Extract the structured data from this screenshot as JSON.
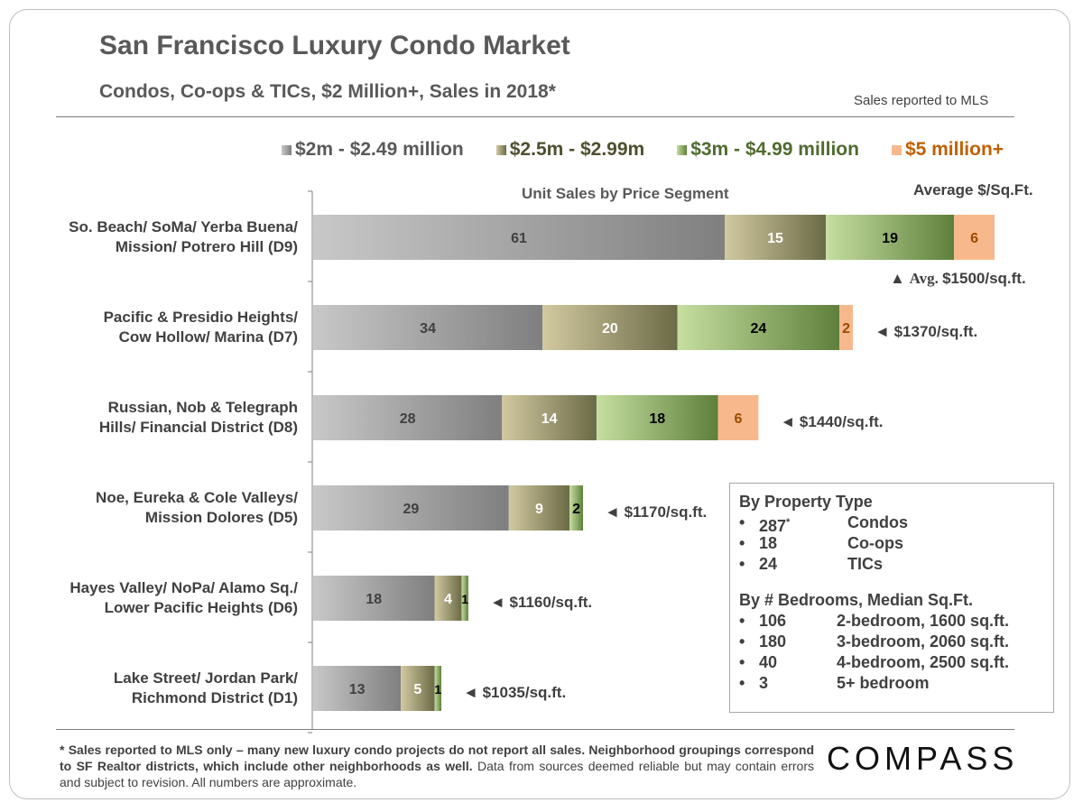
{
  "title": "San Francisco Luxury Condo Market",
  "subtitle": "Condos, Co-ops & TICs, $2 Million+,  Sales in 2018*",
  "source_note": "Sales reported to MLS",
  "chart_data": {
    "type": "bar",
    "orientation": "horizontal",
    "stacked": true,
    "title": "Unit Sales by Price Segment",
    "value_heading": "Average $/Sq.Ft.",
    "categories": [
      [
        "So. Beach/ SoMa/ Yerba Buena/",
        "Mission/ Potrero Hill (D9)"
      ],
      [
        "Pacific & Presidio Heights/",
        "Cow Hollow/ Marina (D7)"
      ],
      [
        "Russian, Nob & Telegraph",
        "Hills/ Financial District (D8)"
      ],
      [
        "Noe, Eureka & Cole Valleys/",
        "Mission Dolores (D5)"
      ],
      [
        "Hayes Valley/ NoPa/ Alamo Sq./",
        "Lower Pacific Heights (D6)"
      ],
      [
        "Lake Street/ Jordan Park/",
        "Richmond District (D1)"
      ]
    ],
    "series": [
      {
        "name": "$2m - $2.49 million",
        "values": [
          61,
          34,
          28,
          29,
          18,
          13
        ],
        "color": "#7f7f7f",
        "light": "#c8c8c8",
        "label_color": "#404040"
      },
      {
        "name": "$2.5m - $2.99m",
        "values": [
          15,
          20,
          14,
          9,
          4,
          5
        ],
        "color": "#6b6b47",
        "light": "#d2c9a0",
        "label_color": "#ffffff"
      },
      {
        "name": "$3m - $4.99 million",
        "values": [
          19,
          24,
          18,
          2,
          1,
          1
        ],
        "color": "#5f7f3c",
        "light": "#c5dfa0",
        "label_color": "#000000"
      },
      {
        "name": "$5 million+",
        "values": [
          6,
          2,
          6,
          0,
          0,
          0
        ],
        "color": "#f7b98c",
        "light": "#fbcba6",
        "label_color": "#9c4a00"
      }
    ],
    "avg_price_per_sqft": [
      {
        "arrow": "▲",
        "prefix": "Avg.",
        "value": "$1500/sq.ft."
      },
      {
        "arrow": "◄",
        "prefix": "",
        "value": "$1370/sq.ft."
      },
      {
        "arrow": "◄",
        "prefix": "",
        "value": "$1440/sq.ft."
      },
      {
        "arrow": "◄",
        "prefix": "",
        "value": "$1170/sq.ft."
      },
      {
        "arrow": "◄",
        "prefix": "",
        "value": "$1160/sq.ft."
      },
      {
        "arrow": "◄",
        "prefix": "",
        "value": "$1035/sq.ft."
      }
    ],
    "xlim": [
      0,
      101
    ]
  },
  "legend_colors": {
    "series0_text": "#595959",
    "series1_text": "#4f4f2f",
    "series2_text": "#4f6b2f",
    "series3_text": "#c06000"
  },
  "info_box": {
    "property_heading": "By Property Type",
    "property_rows": [
      {
        "bullet": "•",
        "count": "287",
        "mark": "*",
        "label": "Condos"
      },
      {
        "bullet": "•",
        "count": "18",
        "mark": "",
        "label": "Co-ops"
      },
      {
        "bullet": "•",
        "count": "24",
        "mark": "",
        "label": "TICs"
      }
    ],
    "bedroom_heading": "By # Bedrooms, Median Sq.Ft.",
    "bedroom_rows": [
      {
        "bullet": "•",
        "count": "106",
        "label": "2-bedroom, 1600 sq.ft."
      },
      {
        "bullet": "•",
        "count": "180",
        "label": "3-bedroom, 2060 sq.ft."
      },
      {
        "bullet": "•",
        "count": "40",
        "label": "4-bedroom, 2500 sq.ft."
      },
      {
        "bullet": "•",
        "count": "3",
        "label": "5+ bedroom"
      }
    ]
  },
  "footnote": {
    "bold": "* Sales reported to MLS only – many new luxury condo projects do not report all sales. Neighborhood groupings correspond to SF Realtor districts, which include other neighborhoods as well.",
    "normal": " Data from sources deemed reliable but may contain errors and subject to revision. All numbers are approximate."
  },
  "logo_text": "COMPASS"
}
